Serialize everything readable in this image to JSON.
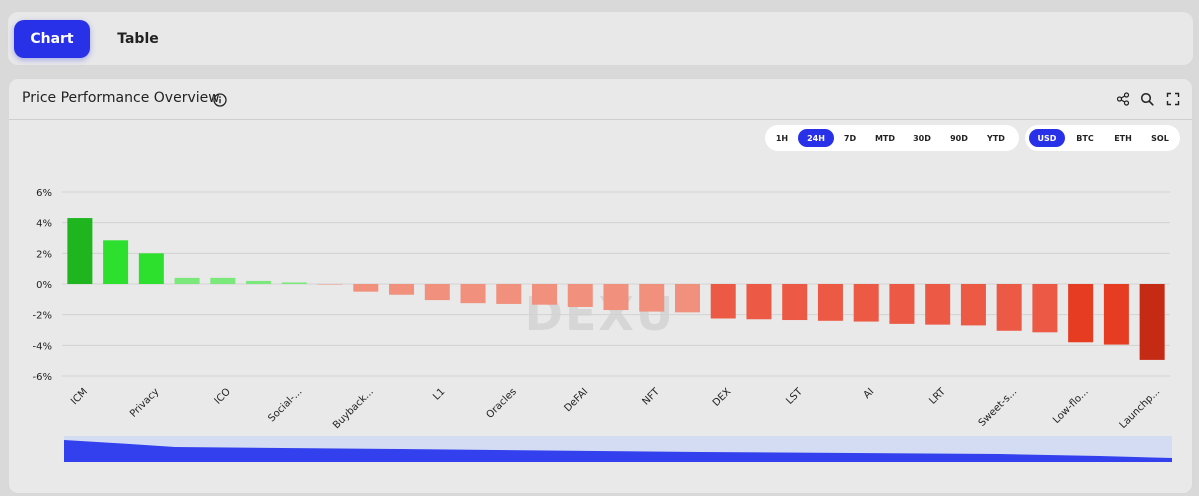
{
  "tabs": [
    {
      "label": "Chart",
      "active": true
    },
    {
      "label": "Table",
      "active": false
    }
  ],
  "card": {
    "title": "Price Performance Overview",
    "info_icon": "info-icon",
    "header_icons": [
      "share-icon",
      "search-icon",
      "fullscreen-icon"
    ]
  },
  "timeframes": [
    {
      "label": "1H",
      "active": false
    },
    {
      "label": "24H",
      "active": true
    },
    {
      "label": "7D",
      "active": false
    },
    {
      "label": "MTD",
      "active": false
    },
    {
      "label": "30D",
      "active": false
    },
    {
      "label": "90D",
      "active": false
    },
    {
      "label": "YTD",
      "active": false
    }
  ],
  "currencies": [
    {
      "label": "USD",
      "active": true
    },
    {
      "label": "BTC",
      "active": false
    },
    {
      "label": "ETH",
      "active": false
    },
    {
      "label": "SOL",
      "active": false
    }
  ],
  "colors": {
    "accent": "#2831e8",
    "positive_strong": "#1fb51f",
    "positive_mid": "#2ee02e",
    "positive_light": "#7be87b",
    "negative_light": "#f0907d",
    "negative_mid": "#ec5a45",
    "negative_strong": "#c42a14",
    "grid": "#d2d2d2",
    "slider_track": "#d3dcf3",
    "slider_fill": "#3340ee"
  },
  "watermark": "DEXU",
  "chart_data": {
    "type": "bar",
    "title": "",
    "xlabel": "",
    "ylabel": "",
    "ylim": [
      -6,
      6
    ],
    "y_ticks": [
      "6%",
      "4%",
      "2%",
      "0%",
      "-2%",
      "-4%",
      "-6%"
    ],
    "y_tick_values": [
      6,
      4,
      2,
      0,
      -2,
      -4,
      -6
    ],
    "labeled_categories": [
      "ICM",
      "Privacy",
      "ICO",
      "Social-...",
      "Buyback...",
      "L1",
      "Oracles",
      "DeFAI",
      "NFT",
      "DEX",
      "LST",
      "AI",
      "LRT",
      "Sweet-s...",
      "Low-flo...",
      "Launchp..."
    ],
    "values": [
      4.3,
      2.85,
      2.0,
      0.4,
      0.4,
      0.2,
      0.1,
      0.0,
      -0.5,
      -0.7,
      -1.05,
      -1.25,
      -1.3,
      -1.35,
      -1.5,
      -1.7,
      -1.8,
      -1.85,
      -2.25,
      -2.3,
      -2.35,
      -2.4,
      -2.45,
      -2.6,
      -2.65,
      -2.7,
      -3.05,
      -3.15,
      -3.8,
      -3.95,
      -4.95
    ],
    "grid": true,
    "legend": "none"
  }
}
